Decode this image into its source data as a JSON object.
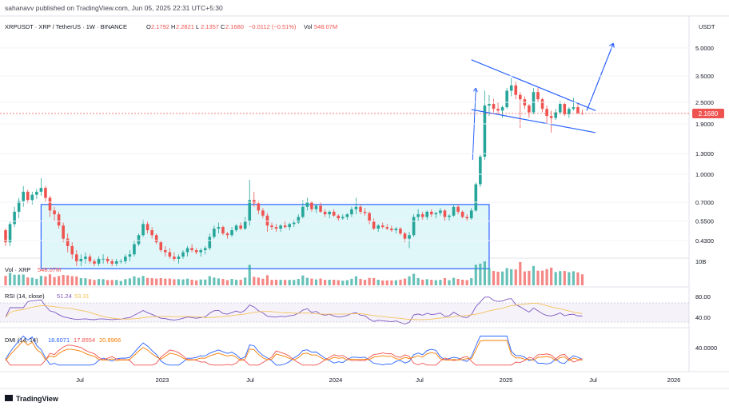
{
  "header": {
    "published": "sahanavv published on TradingView.com, Jun 05, 2025 22:31 UTC+5:30",
    "symbol": "XRPUSDT · XRP / TetherUS · 1W · BINANCE",
    "o_label": "O",
    "o_value": "2.1792",
    "h_label": "H",
    "h_value": "2.2821",
    "l_label": "L",
    "l_value": "2.1357",
    "c_label": "C",
    "c_value": "2.1680",
    "change": "−0.0112 (−0.51%)",
    "vol_label": "Vol",
    "vol_value": "548.07M",
    "currency": "USDT"
  },
  "colors": {
    "up": "#26a69a",
    "down": "#ef5350",
    "volume_up": "#26a69a",
    "volume_down": "#ef5350",
    "trendline": "#2962ff",
    "rsi": "#7e57c2",
    "rsi_ma": "#f5c35b",
    "di_plus": "#2962ff",
    "di_minus": "#ef5350",
    "adx": "#f57c00",
    "range_fill": "#e0f7fa",
    "price_badge": "#ef5350"
  },
  "chart_data": {
    "type": "candlestick",
    "price_axis": {
      "scale": "log",
      "ticks": [
        "5.0000",
        "3.5000",
        "2.5000",
        "1.9000",
        "1.3000",
        "1.0000",
        "0.7000",
        "0.5500",
        "0.4300"
      ]
    },
    "last_price": "2.1680",
    "time_axis": [
      "Jul",
      "2023",
      "Jul",
      "2024",
      "Jul",
      "2025",
      "Jul",
      "2026"
    ],
    "candles": [
      [
        0.49,
        0.5,
        0.4,
        0.42
      ],
      [
        0.42,
        0.55,
        0.4,
        0.53
      ],
      [
        0.53,
        0.66,
        0.51,
        0.62
      ],
      [
        0.62,
        0.74,
        0.57,
        0.71
      ],
      [
        0.71,
        0.86,
        0.66,
        0.8
      ],
      [
        0.8,
        0.82,
        0.69,
        0.72
      ],
      [
        0.72,
        0.8,
        0.68,
        0.77
      ],
      [
        0.77,
        0.83,
        0.73,
        0.8
      ],
      [
        0.8,
        0.95,
        0.76,
        0.84
      ],
      [
        0.84,
        0.86,
        0.7,
        0.74
      ],
      [
        0.74,
        0.76,
        0.58,
        0.63
      ],
      [
        0.63,
        0.66,
        0.55,
        0.6
      ],
      [
        0.6,
        0.62,
        0.5,
        0.52
      ],
      [
        0.52,
        0.54,
        0.42,
        0.44
      ],
      [
        0.44,
        0.47,
        0.37,
        0.4
      ],
      [
        0.4,
        0.42,
        0.34,
        0.36
      ],
      [
        0.36,
        0.38,
        0.31,
        0.33
      ],
      [
        0.33,
        0.36,
        0.31,
        0.34
      ],
      [
        0.34,
        0.37,
        0.32,
        0.35
      ],
      [
        0.35,
        0.36,
        0.32,
        0.33
      ],
      [
        0.33,
        0.34,
        0.31,
        0.32
      ],
      [
        0.32,
        0.35,
        0.31,
        0.34
      ],
      [
        0.34,
        0.36,
        0.32,
        0.34
      ],
      [
        0.34,
        0.35,
        0.32,
        0.33
      ],
      [
        0.33,
        0.34,
        0.31,
        0.32
      ],
      [
        0.32,
        0.34,
        0.31,
        0.33
      ],
      [
        0.33,
        0.34,
        0.32,
        0.33
      ],
      [
        0.33,
        0.36,
        0.32,
        0.35
      ],
      [
        0.35,
        0.38,
        0.33,
        0.36
      ],
      [
        0.36,
        0.43,
        0.35,
        0.41
      ],
      [
        0.41,
        0.47,
        0.4,
        0.46
      ],
      [
        0.46,
        0.56,
        0.45,
        0.53
      ],
      [
        0.53,
        0.55,
        0.47,
        0.49
      ],
      [
        0.49,
        0.51,
        0.44,
        0.46
      ],
      [
        0.46,
        0.47,
        0.41,
        0.42
      ],
      [
        0.42,
        0.43,
        0.37,
        0.38
      ],
      [
        0.38,
        0.4,
        0.35,
        0.37
      ],
      [
        0.37,
        0.39,
        0.34,
        0.35
      ],
      [
        0.35,
        0.37,
        0.33,
        0.34
      ],
      [
        0.34,
        0.36,
        0.32,
        0.35
      ],
      [
        0.35,
        0.38,
        0.34,
        0.37
      ],
      [
        0.37,
        0.4,
        0.35,
        0.39
      ],
      [
        0.39,
        0.41,
        0.37,
        0.38
      ],
      [
        0.38,
        0.39,
        0.36,
        0.37
      ],
      [
        0.37,
        0.39,
        0.35,
        0.38
      ],
      [
        0.38,
        0.4,
        0.36,
        0.39
      ],
      [
        0.39,
        0.47,
        0.38,
        0.45
      ],
      [
        0.45,
        0.52,
        0.44,
        0.5
      ],
      [
        0.5,
        0.54,
        0.47,
        0.51
      ],
      [
        0.51,
        0.52,
        0.46,
        0.47
      ],
      [
        0.47,
        0.48,
        0.44,
        0.46
      ],
      [
        0.46,
        0.51,
        0.45,
        0.49
      ],
      [
        0.49,
        0.53,
        0.48,
        0.52
      ],
      [
        0.52,
        0.54,
        0.49,
        0.5
      ],
      [
        0.5,
        0.58,
        0.49,
        0.55
      ],
      [
        0.55,
        0.93,
        0.52,
        0.72
      ],
      [
        0.72,
        0.8,
        0.66,
        0.69
      ],
      [
        0.69,
        0.71,
        0.6,
        0.63
      ],
      [
        0.63,
        0.65,
        0.57,
        0.59
      ],
      [
        0.59,
        0.61,
        0.48,
        0.52
      ],
      [
        0.52,
        0.54,
        0.49,
        0.51
      ],
      [
        0.51,
        0.53,
        0.48,
        0.5
      ],
      [
        0.5,
        0.53,
        0.48,
        0.52
      ],
      [
        0.52,
        0.55,
        0.5,
        0.51
      ],
      [
        0.51,
        0.54,
        0.49,
        0.53
      ],
      [
        0.53,
        0.56,
        0.51,
        0.54
      ],
      [
        0.54,
        0.6,
        0.53,
        0.58
      ],
      [
        0.58,
        0.72,
        0.57,
        0.66
      ],
      [
        0.66,
        0.74,
        0.63,
        0.7
      ],
      [
        0.7,
        0.71,
        0.62,
        0.64
      ],
      [
        0.64,
        0.68,
        0.61,
        0.67
      ],
      [
        0.67,
        0.7,
        0.61,
        0.62
      ],
      [
        0.62,
        0.64,
        0.58,
        0.6
      ],
      [
        0.6,
        0.63,
        0.57,
        0.62
      ],
      [
        0.62,
        0.64,
        0.58,
        0.59
      ],
      [
        0.59,
        0.6,
        0.55,
        0.57
      ],
      [
        0.57,
        0.6,
        0.56,
        0.58
      ],
      [
        0.58,
        0.61,
        0.56,
        0.6
      ],
      [
        0.6,
        0.66,
        0.58,
        0.64
      ],
      [
        0.64,
        0.74,
        0.6,
        0.66
      ],
      [
        0.66,
        0.68,
        0.6,
        0.62
      ],
      [
        0.62,
        0.65,
        0.59,
        0.61
      ],
      [
        0.61,
        0.62,
        0.53,
        0.55
      ],
      [
        0.55,
        0.57,
        0.49,
        0.5
      ],
      [
        0.5,
        0.53,
        0.48,
        0.52
      ],
      [
        0.52,
        0.54,
        0.5,
        0.51
      ],
      [
        0.51,
        0.53,
        0.49,
        0.5
      ],
      [
        0.5,
        0.52,
        0.48,
        0.49
      ],
      [
        0.49,
        0.51,
        0.47,
        0.5
      ],
      [
        0.5,
        0.51,
        0.46,
        0.47
      ],
      [
        0.47,
        0.48,
        0.42,
        0.44
      ],
      [
        0.44,
        0.48,
        0.39,
        0.46
      ],
      [
        0.46,
        0.6,
        0.45,
        0.58
      ],
      [
        0.58,
        0.64,
        0.55,
        0.6
      ],
      [
        0.6,
        0.62,
        0.56,
        0.58
      ],
      [
        0.58,
        0.63,
        0.56,
        0.62
      ],
      [
        0.62,
        0.64,
        0.58,
        0.6
      ],
      [
        0.6,
        0.62,
        0.57,
        0.61
      ],
      [
        0.61,
        0.65,
        0.59,
        0.63
      ],
      [
        0.63,
        0.64,
        0.55,
        0.58
      ],
      [
        0.58,
        0.6,
        0.55,
        0.59
      ],
      [
        0.59,
        0.68,
        0.58,
        0.66
      ],
      [
        0.66,
        0.68,
        0.6,
        0.62
      ],
      [
        0.62,
        0.63,
        0.57,
        0.58
      ],
      [
        0.58,
        0.6,
        0.55,
        0.57
      ],
      [
        0.57,
        0.65,
        0.56,
        0.63
      ],
      [
        0.63,
        0.9,
        0.62,
        0.88
      ],
      [
        0.88,
        1.28,
        0.85,
        1.25
      ],
      [
        1.25,
        2.9,
        1.2,
        2.4
      ],
      [
        2.4,
        2.75,
        2.1,
        2.45
      ],
      [
        2.45,
        2.62,
        2.2,
        2.3
      ],
      [
        2.3,
        2.5,
        2.15,
        2.25
      ],
      [
        2.25,
        2.4,
        2.05,
        2.35
      ],
      [
        2.35,
        3.0,
        2.3,
        2.9
      ],
      [
        2.9,
        3.4,
        2.7,
        3.1
      ],
      [
        3.1,
        3.25,
        2.6,
        2.75
      ],
      [
        2.75,
        2.85,
        1.8,
        2.6
      ],
      [
        2.6,
        2.7,
        2.3,
        2.4
      ],
      [
        2.4,
        2.45,
        2.05,
        2.2
      ],
      [
        2.2,
        3.0,
        2.15,
        2.85
      ],
      [
        2.85,
        3.0,
        2.5,
        2.6
      ],
      [
        2.6,
        2.65,
        2.2,
        2.3
      ],
      [
        2.3,
        2.4,
        1.9,
        2.1
      ],
      [
        2.1,
        2.25,
        1.7,
        2.05
      ],
      [
        2.05,
        2.3,
        2.0,
        2.2
      ],
      [
        2.2,
        2.55,
        2.15,
        2.45
      ],
      [
        2.45,
        2.5,
        2.1,
        2.15
      ],
      [
        2.15,
        2.35,
        2.05,
        2.3
      ],
      [
        2.3,
        2.65,
        2.25,
        2.35
      ],
      [
        2.35,
        2.45,
        2.15,
        2.18
      ],
      [
        2.18,
        2.28,
        2.13,
        2.17
      ]
    ],
    "annotations": {
      "range_box": {
        "top": 0.68,
        "bottom": 0.3,
        "label": ""
      },
      "wedge_upper": [
        [
          2.95,
          4.3
        ],
        [
          2.3,
          2.25
        ]
      ],
      "wedge_lower": [
        [
          2.1,
          2.28
        ],
        [
          1.72,
          1.7
        ]
      ],
      "projection_arrow": [
        2.25,
        5.3
      ]
    },
    "panels": {
      "volume": {
        "label": "Vol · XRP",
        "value": "548.07M",
        "axis_tick": "10B"
      },
      "rsi": {
        "label": "RSI (14, close)",
        "value1": "51.24",
        "value2": "53.31",
        "ticks": [
          "80.00",
          "40.00"
        ]
      },
      "dmi": {
        "label": "DMI (14, 14)",
        "value1": "18.6071",
        "value2": "17.8554",
        "value3": "20.8966",
        "ticks": [
          "40.0000"
        ]
      }
    }
  },
  "footer": {
    "brand": "TradingView"
  }
}
